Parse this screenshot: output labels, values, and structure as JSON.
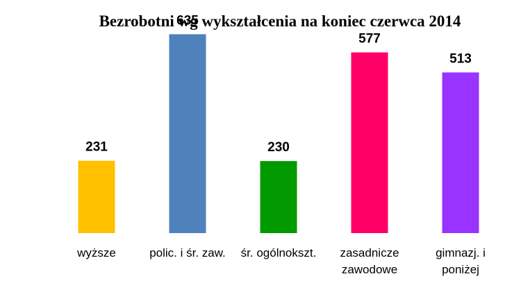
{
  "chart_data": {
    "type": "bar",
    "title": "Bezrobotni wg wykształcenia na koniec czerwca 2014",
    "xlabel": "",
    "ylabel": "",
    "categories": [
      [
        "wyższe"
      ],
      [
        "polic. i śr. zaw."
      ],
      [
        "śr. ogólnokszt."
      ],
      [
        "zasadnicze",
        "zawodowe"
      ],
      [
        "gimnazj. i",
        "poniżej"
      ]
    ],
    "values": [
      231,
      635,
      230,
      577,
      513
    ],
    "colors": [
      "#FFC000",
      "#4F81BD",
      "#009900",
      "#FF0066",
      "#9933FF"
    ],
    "ylim": [
      0,
      700
    ],
    "grid": false,
    "legend": "none",
    "data_labels": true
  }
}
